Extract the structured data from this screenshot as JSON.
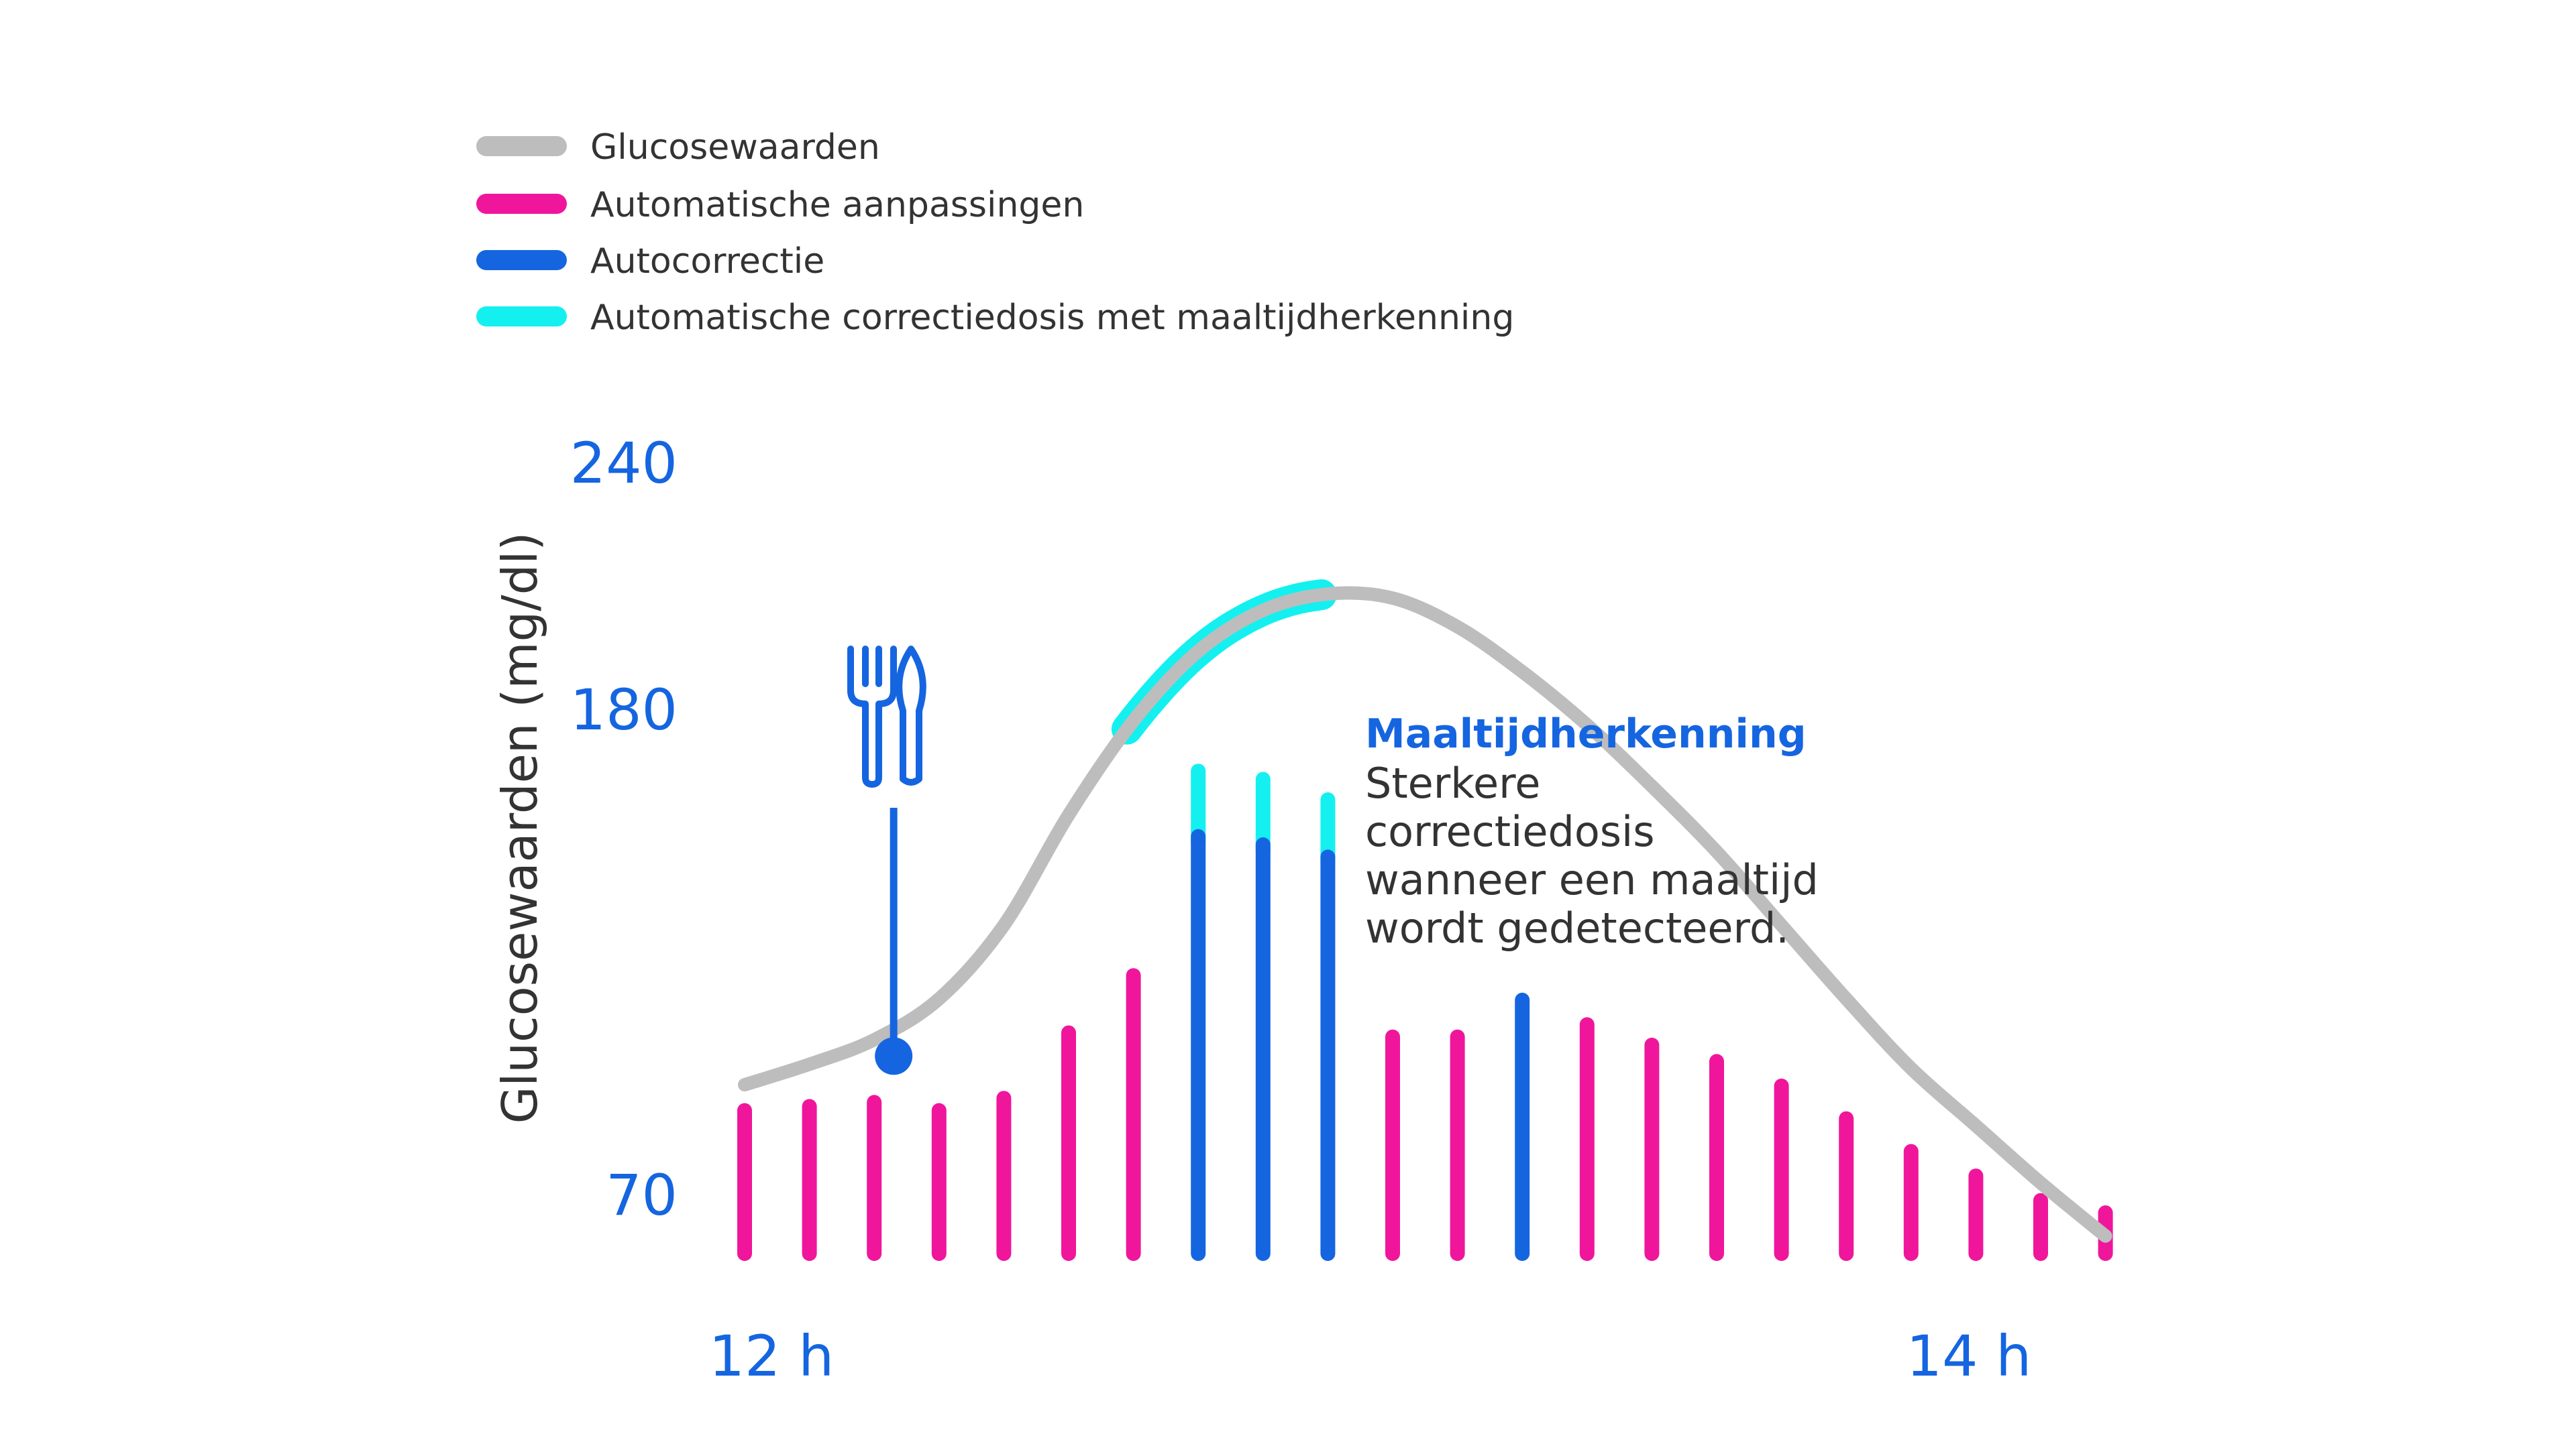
{
  "chart_data": {
    "type": "bar",
    "xlabel": "",
    "ylabel": "Glucosewaarden (mg/dl)",
    "y_ticks": [
      "240",
      "180",
      "70"
    ],
    "x_ticks": [
      "12 h",
      "14 h"
    ],
    "colors": {
      "glucose": "#bdbdbd",
      "auto": "#f0169b",
      "autocorrect": "#1565e0",
      "meal": "#14f0f0",
      "accent": "#1565e0"
    },
    "legend": [
      {
        "key": "glucose",
        "label": "Glucosewaarden"
      },
      {
        "key": "auto",
        "label": "Automatische aanpassingen"
      },
      {
        "key": "autocorrect",
        "label": "Autocorrectie"
      },
      {
        "key": "meal",
        "label": "Automatische correctiedosis met maaltijdherkenning"
      }
    ],
    "glucose_curve": [
      [
        0,
        99
      ],
      [
        1,
        104
      ],
      [
        2,
        110
      ],
      [
        3,
        120
      ],
      [
        4,
        138
      ],
      [
        5,
        165
      ],
      [
        6,
        188
      ],
      [
        7,
        205
      ],
      [
        8,
        215
      ],
      [
        9,
        219
      ],
      [
        10,
        218
      ],
      [
        11,
        211
      ],
      [
        12,
        200
      ],
      [
        13,
        187
      ],
      [
        14,
        172
      ],
      [
        15,
        156
      ],
      [
        16,
        138
      ],
      [
        17,
        120
      ],
      [
        18,
        103
      ],
      [
        19,
        89
      ],
      [
        20,
        75
      ],
      [
        21,
        62
      ]
    ],
    "meal_highlight_range": [
      5.9,
      8.9
    ],
    "meal_marker_x": 2.3,
    "meal_marker_y": 106,
    "bars": [
      {
        "type": "auto",
        "value": 35
      },
      {
        "type": "auto",
        "value": 36
      },
      {
        "type": "auto",
        "value": 37
      },
      {
        "type": "auto",
        "value": 35
      },
      {
        "type": "auto",
        "value": 38
      },
      {
        "type": "auto",
        "value": 54
      },
      {
        "type": "auto",
        "value": 68
      },
      {
        "type": "autocorrect",
        "value": 102,
        "meal_extra": 16
      },
      {
        "type": "autocorrect",
        "value": 100,
        "meal_extra": 16
      },
      {
        "type": "autocorrect",
        "value": 97,
        "meal_extra": 14
      },
      {
        "type": "auto",
        "value": 53
      },
      {
        "type": "auto",
        "value": 53
      },
      {
        "type": "autocorrect",
        "value": 62
      },
      {
        "type": "auto",
        "value": 56
      },
      {
        "type": "auto",
        "value": 51
      },
      {
        "type": "auto",
        "value": 47
      },
      {
        "type": "auto",
        "value": 41
      },
      {
        "type": "auto",
        "value": 33
      },
      {
        "type": "auto",
        "value": 25
      },
      {
        "type": "auto",
        "value": 19
      },
      {
        "type": "auto",
        "value": 13
      },
      {
        "type": "auto",
        "value": 10
      }
    ],
    "annotation": {
      "title": "Maaltijdherkenning",
      "lines": [
        "Sterkere",
        "correctiedosis",
        "wanneer een maaltijd",
        "wordt gedetecteerd."
      ]
    }
  }
}
